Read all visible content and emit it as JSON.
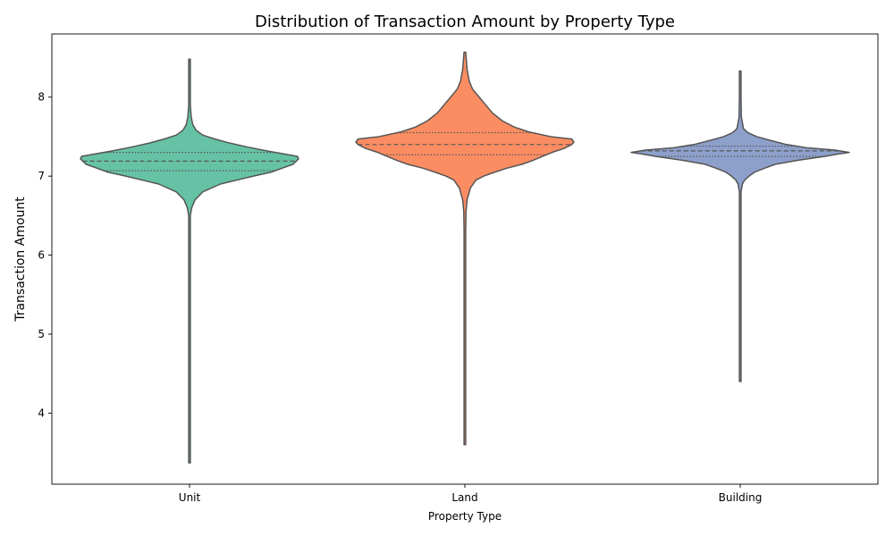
{
  "chart_data": {
    "type": "violin",
    "title": "Distribution of Transaction Amount by Property Type",
    "xlabel": "Property Type",
    "ylabel": "Transaction Amount",
    "categories": [
      "Unit",
      "Land",
      "Building"
    ],
    "ylim": [
      3.1,
      8.8
    ],
    "yticks": [
      4,
      5,
      6,
      7,
      8
    ],
    "grid": false,
    "colors": {
      "Unit": "#66c2a5",
      "Land": "#fc8d62",
      "Building": "#8da0cb",
      "outline": "#555555"
    },
    "series": [
      {
        "category": "Unit",
        "min": 3.37,
        "max": 8.48,
        "q1": 7.07,
        "median": 7.19,
        "q3": 7.3,
        "density": [
          [
            3.37,
            0.0
          ],
          [
            6.5,
            0.0
          ],
          [
            6.6,
            0.02
          ],
          [
            6.7,
            0.05
          ],
          [
            6.8,
            0.12
          ],
          [
            6.9,
            0.28
          ],
          [
            6.95,
            0.43
          ],
          [
            7.0,
            0.58
          ],
          [
            7.05,
            0.74
          ],
          [
            7.1,
            0.84
          ],
          [
            7.15,
            0.94
          ],
          [
            7.19,
            0.97
          ],
          [
            7.22,
            0.99
          ],
          [
            7.25,
            0.98
          ],
          [
            7.28,
            0.86
          ],
          [
            7.32,
            0.7
          ],
          [
            7.37,
            0.52
          ],
          [
            7.42,
            0.36
          ],
          [
            7.47,
            0.23
          ],
          [
            7.52,
            0.12
          ],
          [
            7.58,
            0.06
          ],
          [
            7.65,
            0.03
          ],
          [
            7.75,
            0.015
          ],
          [
            7.9,
            0.005
          ],
          [
            8.48,
            0.0
          ]
        ]
      },
      {
        "category": "Land",
        "min": 3.6,
        "max": 8.57,
        "q1": 7.27,
        "median": 7.4,
        "q3": 7.55,
        "density": [
          [
            3.6,
            0.0
          ],
          [
            6.3,
            0.0
          ],
          [
            6.55,
            0.01
          ],
          [
            6.7,
            0.02
          ],
          [
            6.85,
            0.05
          ],
          [
            6.95,
            0.1
          ],
          [
            7.0,
            0.17
          ],
          [
            7.05,
            0.27
          ],
          [
            7.1,
            0.38
          ],
          [
            7.15,
            0.52
          ],
          [
            7.2,
            0.62
          ],
          [
            7.3,
            0.79
          ],
          [
            7.35,
            0.9
          ],
          [
            7.4,
            0.97
          ],
          [
            7.43,
            0.99
          ],
          [
            7.47,
            0.97
          ],
          [
            7.5,
            0.78
          ],
          [
            7.56,
            0.58
          ],
          [
            7.62,
            0.45
          ],
          [
            7.7,
            0.34
          ],
          [
            7.8,
            0.25
          ],
          [
            7.9,
            0.19
          ],
          [
            8.0,
            0.13
          ],
          [
            8.1,
            0.07
          ],
          [
            8.2,
            0.04
          ],
          [
            8.35,
            0.02
          ],
          [
            8.57,
            0.0
          ]
        ]
      },
      {
        "category": "Building",
        "min": 4.4,
        "max": 8.33,
        "q1": 7.25,
        "median": 7.32,
        "q3": 7.38,
        "density": [
          [
            4.4,
            0.0
          ],
          [
            6.8,
            0.0
          ],
          [
            6.9,
            0.02
          ],
          [
            6.95,
            0.04
          ],
          [
            7.0,
            0.08
          ],
          [
            7.05,
            0.13
          ],
          [
            7.1,
            0.22
          ],
          [
            7.15,
            0.32
          ],
          [
            7.2,
            0.52
          ],
          [
            7.25,
            0.77
          ],
          [
            7.28,
            0.89
          ],
          [
            7.3,
            0.99
          ],
          [
            7.33,
            0.86
          ],
          [
            7.36,
            0.6
          ],
          [
            7.4,
            0.42
          ],
          [
            7.45,
            0.28
          ],
          [
            7.5,
            0.15
          ],
          [
            7.55,
            0.07
          ],
          [
            7.6,
            0.03
          ],
          [
            7.75,
            0.01
          ],
          [
            8.0,
            0.005
          ],
          [
            8.33,
            0.0
          ]
        ]
      }
    ]
  }
}
